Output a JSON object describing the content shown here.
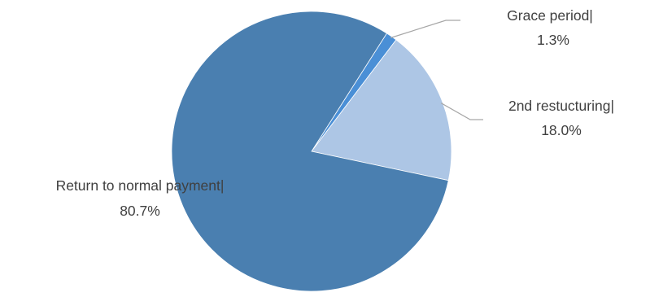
{
  "chart_data": {
    "type": "pie",
    "title": "",
    "start_angle_deg": 0,
    "direction": "clockwise",
    "slices": [
      {
        "label": "Grace period|",
        "value": 1.3,
        "value_label": "1.3%",
        "color": "#4a8fd6"
      },
      {
        "label": "2nd restucturing|",
        "value": 18.0,
        "value_label": "18.0%",
        "color": "#adc6e5"
      },
      {
        "label": "Return to normal payment|",
        "value": 80.7,
        "value_label": "80.7%",
        "color": "#4a7fb0"
      }
    ],
    "legend": "none",
    "data_labels": "outside-with-leader-lines"
  }
}
